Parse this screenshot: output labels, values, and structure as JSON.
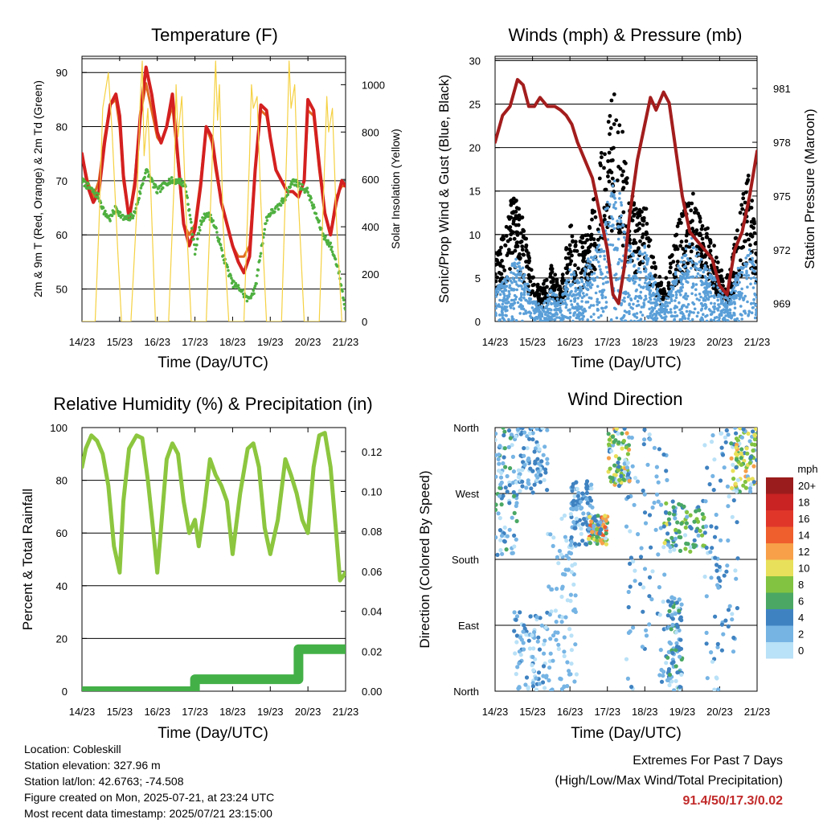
{
  "chart_data": [
    {
      "type": "line",
      "title": "Temperature (F)",
      "xlabel": "Time (Day/UTC)",
      "ylabel": "2m & 9m T (Red, Orange) & 2m Td (Green)",
      "ylabel_right": "Solar Insolation (Yellow)",
      "x_ticks": [
        "14/23",
        "15/23",
        "16/23",
        "17/23",
        "18/23",
        "19/23",
        "20/23",
        "21/23"
      ],
      "x_range": [
        0,
        7
      ],
      "ylim": [
        44,
        93
      ],
      "y_ticks": [
        50,
        60,
        70,
        80,
        90
      ],
      "ylim_right": [
        0,
        1120
      ],
      "y_ticks_right": [
        0,
        200,
        400,
        600,
        800,
        1000
      ],
      "grid": true,
      "series": [
        {
          "axis": "left",
          "color": "#e06a20",
          "x": [
            0,
            0.15,
            0.3,
            0.45,
            0.6,
            0.75,
            0.9,
            1.0,
            1.1,
            1.25,
            1.4,
            1.55,
            1.7,
            1.85,
            2.0,
            2.1,
            2.25,
            2.4,
            2.55,
            2.7,
            2.85,
            3.0,
            3.15,
            3.3,
            3.45,
            3.55,
            3.7,
            3.85,
            4.0,
            4.15,
            4.3,
            4.45,
            4.6,
            4.75,
            4.9,
            5.0,
            5.15,
            5.3,
            5.45,
            5.6,
            5.75,
            5.9,
            6.0,
            6.15,
            6.3,
            6.45,
            6.6,
            6.75,
            6.9,
            7.0
          ],
          "y": [
            75,
            70,
            67,
            70,
            78,
            84,
            85,
            80,
            70,
            63,
            70,
            82,
            88,
            83,
            78,
            77,
            80,
            84,
            73,
            62,
            60,
            62,
            70,
            80,
            77,
            72,
            66,
            62,
            58,
            56,
            56,
            58,
            72,
            83,
            82,
            78,
            72,
            70,
            68,
            68,
            67,
            70,
            83,
            82,
            72,
            64,
            60,
            67,
            69,
            69
          ]
        },
        {
          "axis": "left",
          "color": "#d42020",
          "x": [
            0,
            0.15,
            0.3,
            0.45,
            0.6,
            0.75,
            0.9,
            1.0,
            1.1,
            1.25,
            1.4,
            1.55,
            1.7,
            1.85,
            2.0,
            2.1,
            2.25,
            2.4,
            2.55,
            2.7,
            2.85,
            3.0,
            3.15,
            3.3,
            3.45,
            3.55,
            3.7,
            3.85,
            4.0,
            4.15,
            4.3,
            4.45,
            4.6,
            4.75,
            4.9,
            5.0,
            5.15,
            5.3,
            5.45,
            5.6,
            5.75,
            5.9,
            6.0,
            6.15,
            6.3,
            6.45,
            6.6,
            6.75,
            6.9,
            7.0
          ],
          "y": [
            75,
            69,
            66,
            68,
            77,
            84,
            86,
            82,
            71,
            63,
            69,
            82,
            91,
            86,
            79,
            77,
            80,
            86,
            74,
            62,
            58,
            61,
            69,
            80,
            78,
            73,
            66,
            62,
            58,
            55,
            53,
            56,
            72,
            84,
            83,
            78,
            72,
            70,
            68,
            68,
            67,
            70,
            85,
            83,
            73,
            64,
            60,
            66,
            70,
            69
          ]
        },
        {
          "axis": "left",
          "color": "#4fb040",
          "x": [
            0,
            0.15,
            0.3,
            0.45,
            0.6,
            0.75,
            0.9,
            1.0,
            1.1,
            1.25,
            1.4,
            1.55,
            1.7,
            1.85,
            2.0,
            2.15,
            2.3,
            2.45,
            2.6,
            2.75,
            2.9,
            3.0,
            3.15,
            3.3,
            3.45,
            3.6,
            3.75,
            3.9,
            4.0,
            4.2,
            4.4,
            4.6,
            4.75,
            4.9,
            5.0,
            5.2,
            5.4,
            5.6,
            5.8,
            6.0,
            6.2,
            6.4,
            6.6,
            6.8,
            7.0
          ],
          "y": [
            70,
            69,
            68,
            67,
            64,
            63,
            65,
            64,
            63,
            63,
            64,
            68,
            72,
            70,
            68,
            69,
            70,
            70,
            70,
            69,
            62,
            57,
            62,
            64,
            63,
            60,
            56,
            53,
            51,
            50,
            48,
            50,
            57,
            63,
            64,
            65,
            67,
            70,
            69,
            68,
            64,
            60,
            58,
            54,
            46
          ]
        },
        {
          "axis": "right",
          "color": "#f5d142",
          "x": [
            0,
            0.35,
            0.45,
            0.55,
            0.7,
            0.8,
            0.95,
            1.05,
            1.3,
            1.45,
            1.55,
            1.6,
            1.65,
            1.75,
            1.95,
            2.3,
            2.45,
            2.5,
            2.55,
            2.65,
            2.75,
            2.9,
            3.3,
            3.45,
            3.55,
            3.6,
            3.65,
            3.75,
            3.9,
            4.3,
            4.45,
            4.5,
            4.55,
            4.65,
            4.75,
            4.9,
            5.3,
            5.45,
            5.5,
            5.55,
            5.65,
            5.75,
            5.9,
            6.3,
            6.45,
            6.5,
            6.55,
            6.65,
            6.75,
            6.9,
            7.0
          ],
          "y": [
            0,
            0,
            400,
            900,
            1050,
            800,
            300,
            0,
            0,
            450,
            950,
            1100,
            700,
            900,
            0,
            0,
            600,
            1000,
            780,
            950,
            500,
            0,
            0,
            650,
            1100,
            850,
            1000,
            400,
            0,
            0,
            700,
            1000,
            900,
            950,
            500,
            0,
            0,
            800,
            1100,
            900,
            1000,
            500,
            0,
            0,
            700,
            950,
            800,
            900,
            450,
            0,
            0
          ]
        }
      ]
    },
    {
      "type": "line",
      "title": "Winds (mph) & Pressure (mb)",
      "xlabel": "Time (Day/UTC)",
      "ylabel": "Sonic/Prop Wind & Gust (Blue, Black)",
      "ylabel_right": "Station Pressure (Maroon)",
      "x_ticks": [
        "14/23",
        "15/23",
        "16/23",
        "17/23",
        "18/23",
        "19/23",
        "20/23",
        "21/23"
      ],
      "x_range": [
        0,
        7
      ],
      "ylim": [
        0,
        30.5
      ],
      "y_ticks": [
        0,
        5,
        10,
        15,
        20,
        25,
        30
      ],
      "ylim_right": [
        968.0,
        982.8
      ],
      "y_ticks_right": [
        969,
        972,
        975,
        978,
        981
      ],
      "grid": true,
      "series": [
        {
          "axis": "left",
          "color": "#000000",
          "x": [
            0,
            0.25,
            0.5,
            0.75,
            1.0,
            1.25,
            1.5,
            1.75,
            2.0,
            2.25,
            2.5,
            2.75,
            3.0,
            3.25,
            3.5,
            3.75,
            4.0,
            4.25,
            4.5,
            4.75,
            5.0,
            5.25,
            5.5,
            5.75,
            6.0,
            6.25,
            6.5,
            6.75,
            7.0
          ],
          "y": [
            6,
            8,
            12,
            9,
            4,
            3,
            5,
            3,
            9,
            7,
            9,
            13,
            19,
            22,
            14,
            10,
            11,
            6,
            3,
            7,
            10,
            12,
            9,
            8,
            5,
            4,
            9,
            14,
            7
          ]
        },
        {
          "axis": "left",
          "color": "#5a9fd8",
          "x": [
            0,
            0.25,
            0.5,
            0.75,
            1.0,
            1.25,
            1.5,
            1.75,
            2.0,
            2.25,
            2.5,
            2.75,
            3.0,
            3.25,
            3.5,
            3.75,
            4.0,
            4.25,
            4.5,
            4.75,
            5.0,
            5.25,
            5.5,
            5.75,
            6.0,
            6.25,
            6.5,
            6.75,
            7.0
          ],
          "y": [
            3,
            4,
            6,
            5,
            2,
            1.5,
            3,
            2,
            5,
            4,
            6,
            8,
            11,
            14,
            9,
            6,
            7,
            4,
            1.5,
            4,
            6,
            8,
            6,
            5,
            3,
            2,
            5,
            8,
            4
          ]
        },
        {
          "axis": "right",
          "color": "#a31d1d",
          "x": [
            0,
            0.2,
            0.4,
            0.6,
            0.75,
            0.9,
            1.05,
            1.2,
            1.4,
            1.6,
            1.75,
            1.9,
            2.05,
            2.2,
            2.4,
            2.6,
            2.8,
            3.0,
            3.15,
            3.3,
            3.45,
            3.6,
            3.8,
            4.0,
            4.15,
            4.3,
            4.5,
            4.65,
            4.8,
            5.0,
            5.2,
            5.4,
            5.6,
            5.8,
            6.0,
            6.2,
            6.4,
            6.6,
            6.8,
            7.0
          ],
          "y": [
            978,
            979.5,
            980,
            981.5,
            981.2,
            980,
            980,
            980.5,
            980,
            980,
            979.8,
            979.5,
            979,
            978,
            977,
            976,
            974,
            972,
            969.5,
            969,
            971,
            974,
            977,
            979,
            980.5,
            979.8,
            980.8,
            980.2,
            978,
            975,
            973,
            972.5,
            972,
            971.5,
            970,
            969.5,
            972,
            973,
            975,
            977.5
          ]
        }
      ]
    },
    {
      "type": "line",
      "title": "Relative Humidity (%) & Precipitation (in)",
      "xlabel": "Time (Day/UTC)",
      "ylabel": "Percent & Total Rainfall",
      "x_ticks": [
        "14/23",
        "15/23",
        "16/23",
        "17/23",
        "18/23",
        "19/23",
        "20/23",
        "21/23"
      ],
      "x_range": [
        0,
        7
      ],
      "ylim": [
        0,
        100
      ],
      "y_ticks": [
        0,
        20,
        40,
        60,
        80,
        100
      ],
      "ylim_right": [
        0,
        0.132
      ],
      "y_ticks_right": [
        "0.00",
        "0.02",
        "0.04",
        "0.06",
        "0.08",
        "0.10",
        "0.12"
      ],
      "grid": true,
      "series": [
        {
          "axis": "left",
          "color": "#8cc63f",
          "x": [
            0,
            0.1,
            0.25,
            0.4,
            0.55,
            0.7,
            0.85,
            1.0,
            1.1,
            1.25,
            1.45,
            1.6,
            1.75,
            1.9,
            2.0,
            2.1,
            2.25,
            2.4,
            2.55,
            2.7,
            2.85,
            3.0,
            3.1,
            3.25,
            3.4,
            3.55,
            3.7,
            3.85,
            4.0,
            4.2,
            4.4,
            4.55,
            4.7,
            4.85,
            5.0,
            5.2,
            5.4,
            5.55,
            5.7,
            5.85,
            6.0,
            6.15,
            6.3,
            6.45,
            6.6,
            6.75,
            6.85,
            7.0
          ],
          "y": [
            85,
            92,
            97,
            95,
            90,
            78,
            55,
            45,
            72,
            92,
            97,
            96,
            80,
            60,
            45,
            62,
            88,
            94,
            90,
            72,
            60,
            65,
            55,
            70,
            88,
            82,
            78,
            72,
            52,
            75,
            92,
            94,
            85,
            62,
            52,
            65,
            88,
            82,
            75,
            65,
            60,
            85,
            97,
            98,
            85,
            60,
            42,
            45
          ]
        },
        {
          "axis": "right",
          "color": "#43b047",
          "x": [
            0,
            1.0,
            2.0,
            3.0,
            3.0,
            4.0,
            5.0,
            5.75,
            5.75,
            6.5,
            7.0
          ],
          "y": [
            0,
            0,
            0,
            0,
            0.006,
            0.006,
            0.006,
            0.006,
            0.021,
            0.021,
            0.021
          ]
        }
      ]
    },
    {
      "type": "scatter",
      "title": "Wind Direction",
      "xlabel": "Time (Day/UTC)",
      "ylabel": "Direction (Colored By Speed)",
      "x_ticks": [
        "14/23",
        "15/23",
        "16/23",
        "17/23",
        "18/23",
        "19/23",
        "20/23",
        "21/23"
      ],
      "x_range": [
        0,
        7
      ],
      "ylim": [
        0,
        360
      ],
      "y_ticks": [
        "North",
        "East",
        "South",
        "West",
        "North"
      ],
      "grid": true,
      "legend": {
        "title": "mph",
        "placement": "right",
        "labels": [
          "20+",
          "18",
          "16",
          "14",
          "12",
          "10",
          "8",
          "6",
          "4",
          "2",
          "0"
        ],
        "colors": [
          "#9b1c1c",
          "#c92323",
          "#e0362a",
          "#ef5e2d",
          "#f7a049",
          "#e8e05a",
          "#82c341",
          "#4aa864",
          "#3f82c1",
          "#76b4e4",
          "#b9e1f7"
        ]
      },
      "clusters": [
        {
          "x_from": 0.0,
          "x_to": 0.6,
          "dir_from": 180,
          "dir_to": 360,
          "speed_max": 6
        },
        {
          "x_from": 0.5,
          "x_to": 1.4,
          "dir_from": 0,
          "dir_to": 110,
          "speed_max": 4
        },
        {
          "x_from": 0.6,
          "x_to": 1.4,
          "dir_from": 270,
          "dir_to": 360,
          "speed_max": 5
        },
        {
          "x_from": 1.4,
          "x_to": 2.2,
          "dir_from": 0,
          "dir_to": 240,
          "speed_max": 3
        },
        {
          "x_from": 2.0,
          "x_to": 2.6,
          "dir_from": 200,
          "dir_to": 290,
          "speed_max": 5
        },
        {
          "x_from": 2.5,
          "x_to": 3.0,
          "dir_from": 200,
          "dir_to": 240,
          "speed_max": 15
        },
        {
          "x_from": 3.0,
          "x_to": 3.6,
          "dir_from": 280,
          "dir_to": 360,
          "speed_max": 12
        },
        {
          "x_from": 3.5,
          "x_to": 4.6,
          "dir_from": 0,
          "dir_to": 360,
          "speed_max": 4
        },
        {
          "x_from": 4.5,
          "x_to": 5.6,
          "dir_from": 190,
          "dir_to": 260,
          "speed_max": 10
        },
        {
          "x_from": 4.6,
          "x_to": 5.0,
          "dir_from": 0,
          "dir_to": 130,
          "speed_max": 6
        },
        {
          "x_from": 5.6,
          "x_to": 6.5,
          "dir_from": 0,
          "dir_to": 360,
          "speed_max": 5
        },
        {
          "x_from": 6.3,
          "x_to": 7.0,
          "dir_from": 270,
          "dir_to": 360,
          "speed_max": 12
        }
      ]
    }
  ],
  "footer": {
    "location": "Location: Cobleskill",
    "elevation": "Station elevation: 327.96 m",
    "latlon": "Station lat/lon: 42.6763; -74.508",
    "created": "Figure created on Mon, 2025-07-21, at 23:24 UTC",
    "recent": "Most recent data timestamp: 2025/07/21 23:15:00"
  },
  "extremes": {
    "line1": "Extremes For Past 7 Days",
    "line2": "(High/Low/Max Wind/Total Precipitation)",
    "values": "91.4/50/17.3/0.02"
  }
}
